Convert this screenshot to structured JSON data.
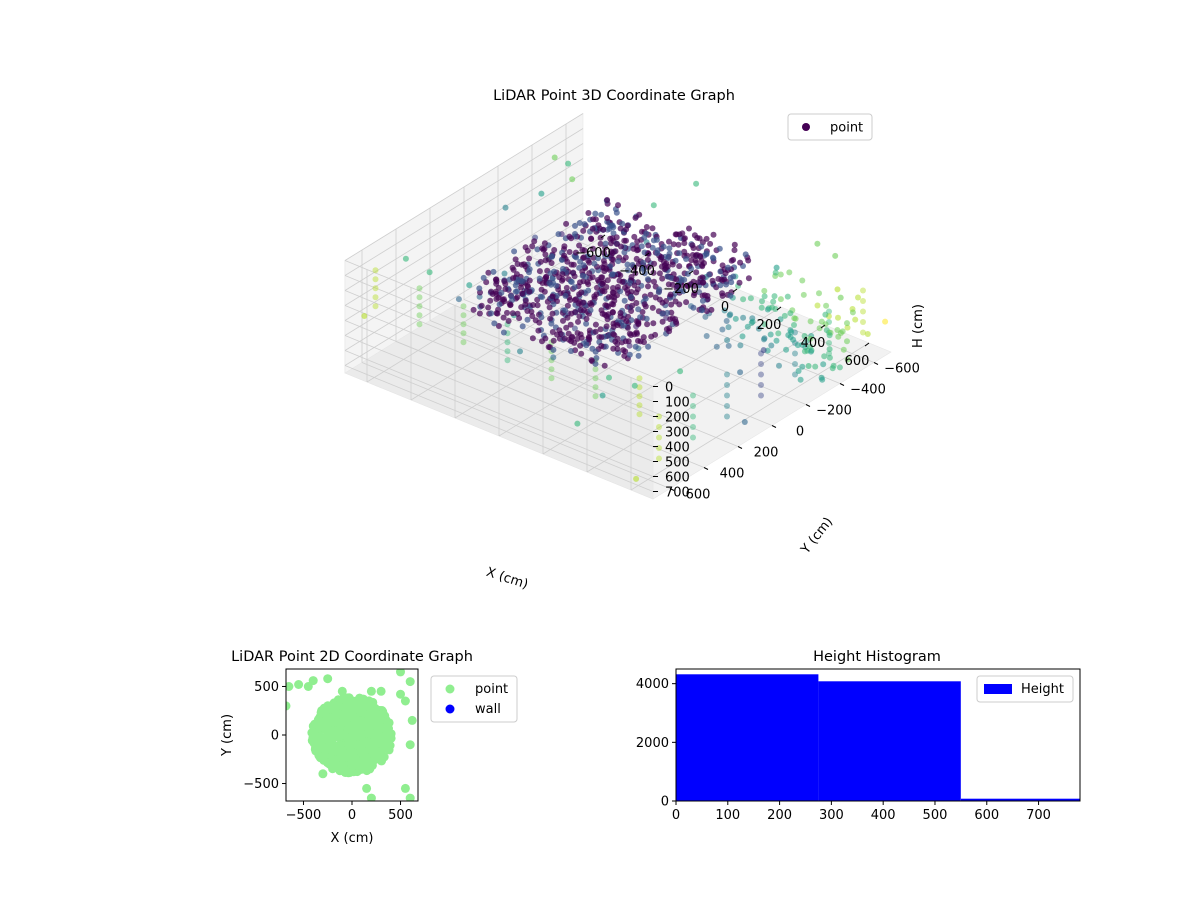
{
  "chart_data": [
    {
      "type": "scatter",
      "title": "LiDAR Point 3D Coordinate Graph",
      "xlabel": "X (cm)",
      "ylabel": "Y (cm)",
      "zlabel": "H (cm)",
      "xlim": [
        -700,
        700
      ],
      "ylim": [
        -700,
        700
      ],
      "zlim": [
        0,
        750
      ],
      "z_inverted": true,
      "xticks": [
        -600,
        -400,
        -200,
        0,
        200,
        400,
        600
      ],
      "yticks": [
        -600,
        -400,
        -200,
        0,
        200,
        400,
        600
      ],
      "zticks": [
        0,
        100,
        200,
        300,
        400,
        500,
        600,
        700
      ],
      "legend": {
        "placement": "top-right",
        "entries": [
          {
            "label": "point",
            "color": "#440154"
          }
        ]
      },
      "colormap": "viridis",
      "grid": true,
      "cluster": {
        "x_range": [
          -350,
          300
        ],
        "y_range": [
          -400,
          450
        ],
        "h_range": [
          100,
          350
        ]
      },
      "sample_points": [
        {
          "x": -650,
          "y": 600,
          "h": 40
        },
        {
          "x": -500,
          "y": 600,
          "h": 60
        },
        {
          "x": 600,
          "y": 600,
          "h": 60
        },
        {
          "x": 650,
          "y": -250,
          "h": 600
        },
        {
          "x": 200,
          "y": -550,
          "h": 580
        },
        {
          "x": -600,
          "y": 300,
          "h": 150
        },
        {
          "x": 450,
          "y": -100,
          "h": 420
        },
        {
          "x": -300,
          "y": 600,
          "h": 120
        }
      ]
    },
    {
      "type": "scatter",
      "title": "LiDAR Point 2D Coordinate Graph",
      "xlabel": "X (cm)",
      "ylabel": "Y (cm)",
      "xlim": [
        -680,
        680
      ],
      "ylim": [
        -680,
        680
      ],
      "xticks": [
        -500,
        0,
        500
      ],
      "yticks": [
        -500,
        0,
        500
      ],
      "legend": {
        "placement": "outside-right",
        "entries": [
          {
            "label": "point",
            "color": "#90ee90"
          },
          {
            "label": "wall",
            "color": "#0000ff"
          }
        ]
      },
      "grid": false,
      "cluster": {
        "x_range": [
          -450,
          450
        ],
        "y_range": [
          -420,
          420
        ]
      },
      "outlier_points": [
        {
          "x": -650,
          "y": 500
        },
        {
          "x": -550,
          "y": 520
        },
        {
          "x": -450,
          "y": 500
        },
        {
          "x": -400,
          "y": 560
        },
        {
          "x": -250,
          "y": 580
        },
        {
          "x": -100,
          "y": 450
        },
        {
          "x": 200,
          "y": 450
        },
        {
          "x": 300,
          "y": 450
        },
        {
          "x": 500,
          "y": 650
        },
        {
          "x": 600,
          "y": 550
        },
        {
          "x": 500,
          "y": 420
        },
        {
          "x": 550,
          "y": 350
        },
        {
          "x": -680,
          "y": 300
        },
        {
          "x": 550,
          "y": -550
        },
        {
          "x": 600,
          "y": -650
        },
        {
          "x": 150,
          "y": -550
        },
        {
          "x": 200,
          "y": -650
        },
        {
          "x": -300,
          "y": -400
        },
        {
          "x": 620,
          "y": 150
        },
        {
          "x": 600,
          "y": -100
        }
      ]
    },
    {
      "type": "bar",
      "title": "Height Histogram",
      "xlim": [
        0,
        780
      ],
      "ylim": [
        0,
        4500
      ],
      "xticks": [
        0,
        100,
        200,
        300,
        400,
        500,
        600,
        700
      ],
      "yticks": [
        0,
        2000,
        4000
      ],
      "legend": {
        "placement": "top-right",
        "entries": [
          {
            "label": "Height",
            "color": "#0000ff"
          }
        ]
      },
      "bar_color": "#0000ff",
      "bins": [
        {
          "start": 0,
          "end": 275,
          "count": 4320
        },
        {
          "start": 275,
          "end": 550,
          "count": 4080
        },
        {
          "start": 550,
          "end": 780,
          "count": 80
        }
      ]
    }
  ]
}
